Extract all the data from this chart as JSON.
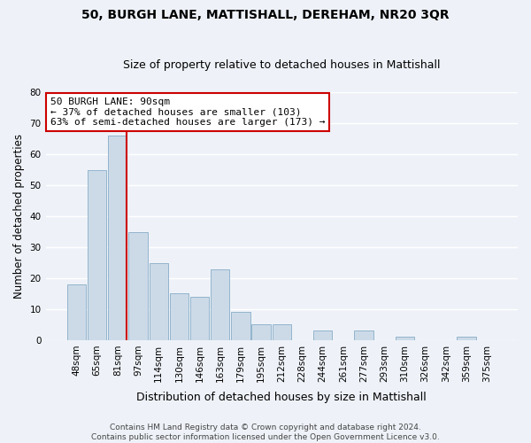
{
  "title": "50, BURGH LANE, MATTISHALL, DEREHAM, NR20 3QR",
  "subtitle": "Size of property relative to detached houses in Mattishall",
  "xlabel": "Distribution of detached houses by size in Mattishall",
  "ylabel": "Number of detached properties",
  "bar_labels": [
    "48sqm",
    "65sqm",
    "81sqm",
    "97sqm",
    "114sqm",
    "130sqm",
    "146sqm",
    "163sqm",
    "179sqm",
    "195sqm",
    "212sqm",
    "228sqm",
    "244sqm",
    "261sqm",
    "277sqm",
    "293sqm",
    "310sqm",
    "326sqm",
    "342sqm",
    "359sqm",
    "375sqm"
  ],
  "bar_values": [
    18,
    55,
    66,
    35,
    25,
    15,
    14,
    23,
    9,
    5,
    5,
    0,
    3,
    0,
    3,
    0,
    1,
    0,
    0,
    1,
    0
  ],
  "bar_color": "#ccdae8",
  "bar_edge_color": "#92b4cc",
  "vline_color": "#cc0000",
  "annotation_text": "50 BURGH LANE: 90sqm\n← 37% of detached houses are smaller (103)\n63% of semi-detached houses are larger (173) →",
  "annotation_box_color": "#ffffff",
  "annotation_box_edge": "#cc0000",
  "ylim": [
    0,
    80
  ],
  "yticks": [
    0,
    10,
    20,
    30,
    40,
    50,
    60,
    70,
    80
  ],
  "footer_line1": "Contains HM Land Registry data © Crown copyright and database right 2024.",
  "footer_line2": "Contains public sector information licensed under the Open Government Licence v3.0.",
  "bg_color": "#eef2f8",
  "grid_color": "#ffffff",
  "title_fontsize": 10,
  "subtitle_fontsize": 9,
  "ylabel_fontsize": 8.5,
  "xlabel_fontsize": 9,
  "tick_fontsize": 7.5,
  "annotation_fontsize": 8,
  "footer_fontsize": 6.5
}
